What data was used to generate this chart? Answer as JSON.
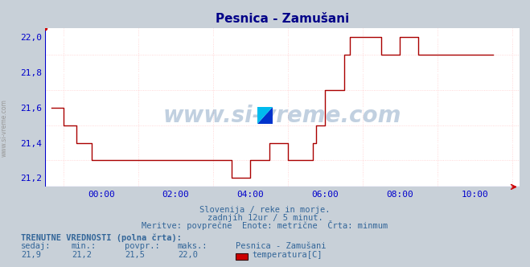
{
  "title": "Pesnica - Zamušani",
  "fig_bg_color": "#c8d0d8",
  "plot_bg_color": "#ffffff",
  "line_color": "#aa0000",
  "grid_color_major": "#ffffff",
  "grid_color_minor": "#ffcccc",
  "axis_color": "#0000cc",
  "tick_color": "#0000cc",
  "text_color": "#336699",
  "title_color": "#000088",
  "ylim": [
    21.15,
    22.05
  ],
  "ytick_vals": [
    21.2,
    21.4,
    21.6,
    21.8,
    22.0
  ],
  "xlim": [
    -1.5,
    11.2
  ],
  "xtick_positions": [
    0,
    2,
    4,
    6,
    8,
    10
  ],
  "xtick_labels": [
    "00:00",
    "02:00",
    "04:00",
    "06:00",
    "08:00",
    "10:00"
  ],
  "watermark": "www.si-vreme.com",
  "subtitle1": "Slovenija / reke in morje.",
  "subtitle2": "zadnjih 12ur / 5 minut.",
  "subtitle3": "Meritve: povprečne  Enote: metrične  Črta: minmum",
  "legend_title": "TRENUTNE VREDNOSTI (polna črta):",
  "legend_headers": [
    "sedaj:",
    "min.:",
    "povpr.:",
    "maks.:",
    "Pesnica - Zamušani"
  ],
  "legend_values": [
    "21,9",
    "21,2",
    "21,5",
    "22,0"
  ],
  "legend_series": "temperatura[C]",
  "legend_color": "#cc0000",
  "sidebar_text": "www.si-vreme.com",
  "x_data": [
    -1.333,
    -1.25,
    -1.0,
    -0.833,
    -0.667,
    -0.5,
    -0.333,
    -0.25,
    0.0,
    0.25,
    0.5,
    0.75,
    1.0,
    1.25,
    1.5,
    1.667,
    1.75,
    2.0,
    2.25,
    2.5,
    2.75,
    3.0,
    3.25,
    3.5,
    3.667,
    3.75,
    4.0,
    4.25,
    4.5,
    4.667,
    4.75,
    5.0,
    5.25,
    5.5,
    5.667,
    5.75,
    6.0,
    6.167,
    6.25,
    6.5,
    6.667,
    6.75,
    7.0,
    7.25,
    7.5,
    7.667,
    8.0,
    8.25,
    8.5,
    8.667,
    8.75,
    9.0,
    9.25,
    9.5,
    9.75,
    10.0,
    10.25,
    10.5
  ],
  "y_data": [
    21.6,
    21.6,
    21.5,
    21.5,
    21.4,
    21.4,
    21.4,
    21.3,
    21.3,
    21.3,
    21.3,
    21.3,
    21.3,
    21.3,
    21.3,
    21.3,
    21.3,
    21.3,
    21.3,
    21.3,
    21.3,
    21.3,
    21.3,
    21.2,
    21.2,
    21.2,
    21.3,
    21.3,
    21.4,
    21.4,
    21.4,
    21.3,
    21.3,
    21.3,
    21.4,
    21.5,
    21.7,
    21.7,
    21.7,
    21.9,
    22.0,
    22.0,
    22.0,
    22.0,
    21.9,
    21.9,
    22.0,
    22.0,
    21.9,
    21.9,
    21.9,
    21.9,
    21.9,
    21.9,
    21.9,
    21.9,
    21.9,
    21.9
  ]
}
